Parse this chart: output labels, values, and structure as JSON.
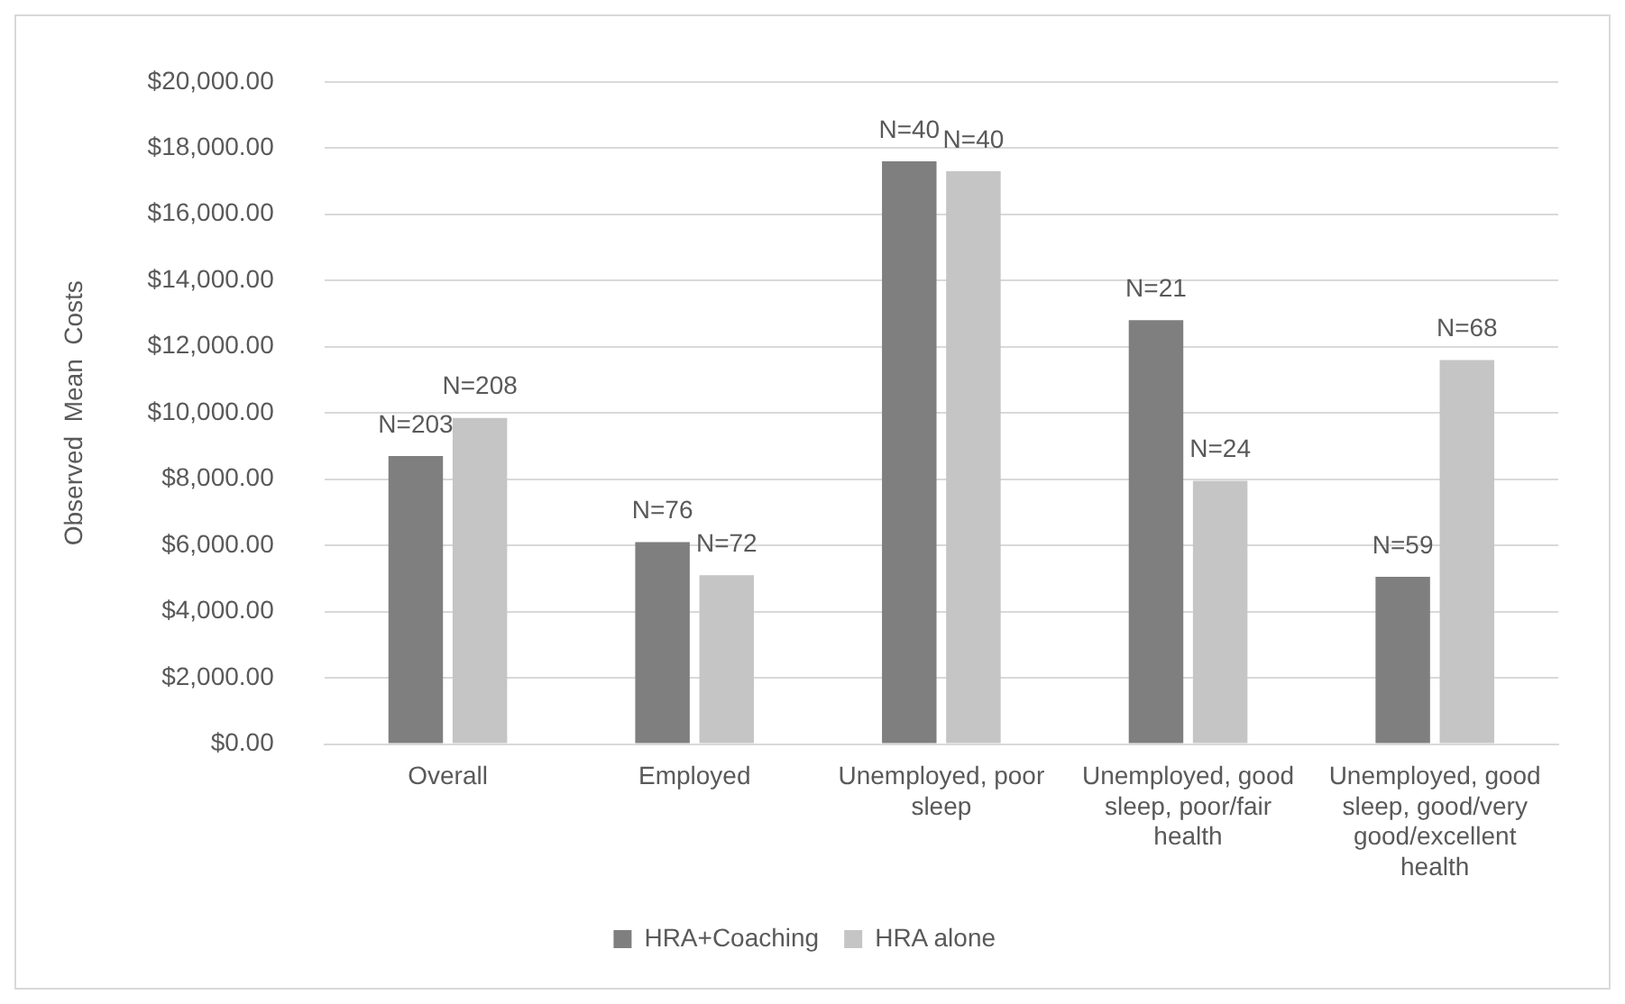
{
  "chart_data": {
    "type": "bar",
    "ylabel": "Observed  Mean  Costs",
    "categories": [
      "Overall",
      "Employed",
      "Unemployed, poor sleep",
      "Unemployed, good sleep, poor/fair health",
      "Unemployed, good sleep, good/very good/excellent health"
    ],
    "series": [
      {
        "name": "HRA+Coaching",
        "color": "#7f7f7f",
        "values": [
          8700,
          6100,
          17600,
          12800,
          5050
        ]
      },
      {
        "name": "HRA alone",
        "color": "#c4c5c4",
        "values": [
          9850,
          5100,
          17300,
          7950,
          11600
        ]
      }
    ],
    "annotations": [
      {
        "text": "N=203",
        "x": "Overall",
        "y": 8700
      },
      {
        "text": "N=208",
        "x": "Overall",
        "y": 9850
      },
      {
        "text": "N=76",
        "x": "Employed",
        "y": 6100
      },
      {
        "text": "N=72",
        "x": "Employed",
        "y": 5100
      },
      {
        "text": "N=40",
        "x": "Unemployed, poor sleep",
        "y": 17600
      },
      {
        "text": "N=40",
        "x": "Unemployed, poor sleep",
        "y": 17300
      },
      {
        "text": "N=21",
        "x": "Unemployed, good sleep, poor/fair health",
        "y": 12800
      },
      {
        "text": "N=24",
        "x": "Unemployed, good sleep, poor/fair health",
        "y": 7950
      },
      {
        "text": "N=59",
        "x": "Unemployed, good sleep, good/very good/excellent health",
        "y": 5050
      },
      {
        "text": "N=68",
        "x": "Unemployed, good sleep, good/very good/excellent health",
        "y": 11600
      }
    ],
    "ylim": [
      0,
      20000
    ],
    "yticks": [
      {
        "value": 0,
        "label": "$0.00"
      },
      {
        "value": 2000,
        "label": "$2,000.00"
      },
      {
        "value": 4000,
        "label": "$4,000.00"
      },
      {
        "value": 6000,
        "label": "$6,000.00"
      },
      {
        "value": 8000,
        "label": "$8,000.00"
      },
      {
        "value": 10000,
        "label": "$10,000.00"
      },
      {
        "value": 12000,
        "label": "$12,000.00"
      },
      {
        "value": 14000,
        "label": "$14,000.00"
      },
      {
        "value": 16000,
        "label": "$16,000.00"
      },
      {
        "value": 18000,
        "label": "$18,000.00"
      },
      {
        "value": 20000,
        "label": "$20,000.00"
      }
    ],
    "grid": "y",
    "legend": "bottom"
  }
}
